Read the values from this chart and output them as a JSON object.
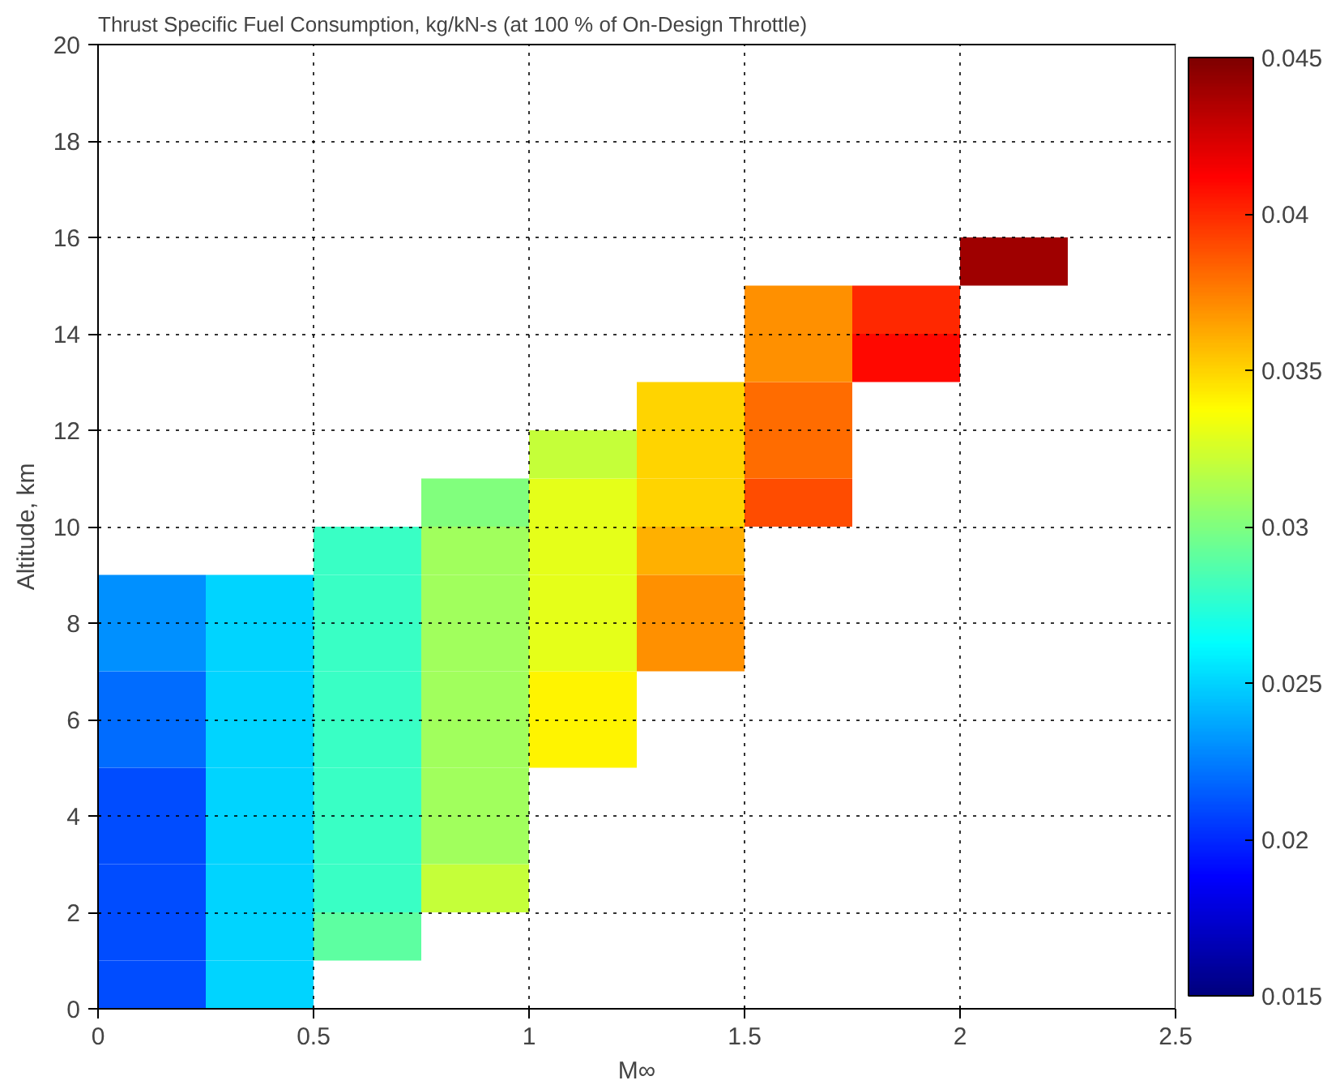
{
  "chart_data": {
    "type": "heatmap",
    "title": "Thrust Specific Fuel Consumption, kg/kN-s (at 100 % of On-Design Throttle)",
    "xlabel": "M∞",
    "ylabel": "Altitude, km",
    "x": [
      0.125,
      0.375,
      0.625,
      0.875,
      1.125,
      1.375,
      1.625,
      1.875,
      2.125
    ],
    "y": [
      0.5,
      1.5,
      2.5,
      3.5,
      4.5,
      5.5,
      6.5,
      7.5,
      8.5,
      9.5,
      10.5,
      11.5,
      12.5,
      13.5,
      14.5,
      15.5
    ],
    "cells": [
      [
        0.021,
        0.025,
        null,
        null,
        null,
        null,
        null,
        null,
        null
      ],
      [
        0.021,
        0.025,
        0.029,
        null,
        null,
        null,
        null,
        null,
        null
      ],
      [
        0.021,
        0.025,
        0.028,
        0.032,
        null,
        null,
        null,
        null,
        null
      ],
      [
        0.021,
        0.025,
        0.028,
        0.031,
        null,
        null,
        null,
        null,
        null
      ],
      [
        0.021,
        0.025,
        0.028,
        0.031,
        null,
        null,
        null,
        null,
        null
      ],
      [
        0.022,
        0.025,
        0.028,
        0.031,
        0.034,
        null,
        null,
        null,
        null
      ],
      [
        0.022,
        0.025,
        0.028,
        0.031,
        0.034,
        null,
        null,
        null,
        null
      ],
      [
        0.023,
        0.025,
        0.028,
        0.031,
        0.033,
        0.037,
        null,
        null,
        null
      ],
      [
        0.023,
        0.025,
        0.028,
        0.031,
        0.033,
        0.037,
        null,
        null,
        null
      ],
      [
        null,
        null,
        0.028,
        0.031,
        0.033,
        0.036,
        null,
        null,
        null
      ],
      [
        null,
        null,
        null,
        0.03,
        0.033,
        0.035,
        0.039,
        null,
        null
      ],
      [
        null,
        null,
        null,
        null,
        0.032,
        0.035,
        0.038,
        null,
        null
      ],
      [
        null,
        null,
        null,
        null,
        null,
        0.035,
        0.038,
        null,
        null
      ],
      [
        null,
        null,
        null,
        null,
        null,
        null,
        0.037,
        0.041,
        null
      ],
      [
        null,
        null,
        null,
        null,
        null,
        null,
        0.037,
        0.04,
        null
      ],
      [
        null,
        null,
        null,
        null,
        null,
        null,
        null,
        null,
        0.044
      ]
    ],
    "xlim": [
      0,
      2.5
    ],
    "xticks": [
      0,
      0.5,
      1,
      1.5,
      2,
      2.5
    ],
    "ylim": [
      0,
      20
    ],
    "yticks": [
      0,
      2,
      4,
      6,
      8,
      10,
      12,
      14,
      16,
      18,
      20
    ],
    "clim": [
      0.015,
      0.045
    ],
    "cticks": [
      0.015,
      0.02,
      0.025,
      0.03,
      0.035,
      0.04,
      0.045
    ],
    "grid": true,
    "line_style": "dotted"
  }
}
